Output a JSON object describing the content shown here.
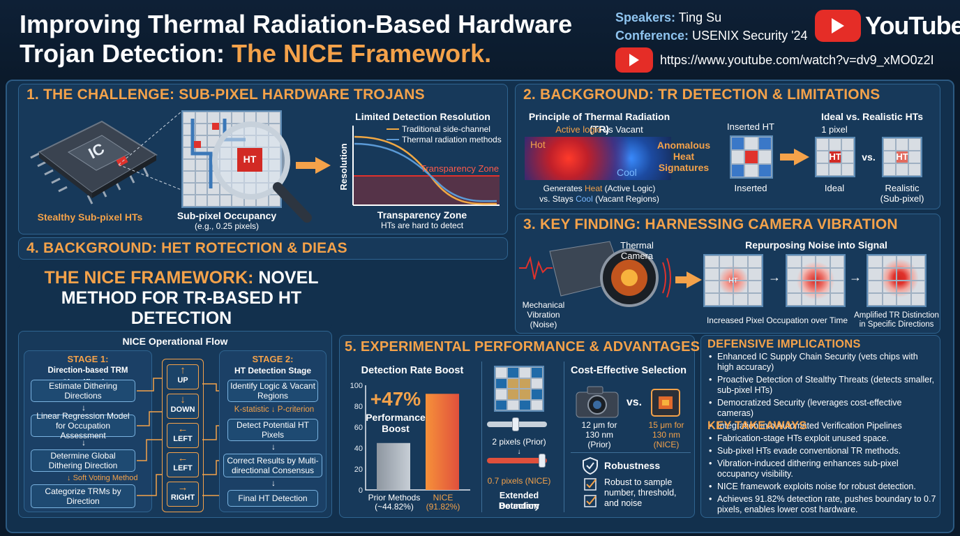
{
  "header": {
    "title_line1": "Improving Thermal Radiation-Based Hardware",
    "title_line2_a": "Trojan Detection: ",
    "title_line2_b": "The NICE Framework.",
    "speakers_label": "Speakers:",
    "speakers_value": "Ting Su",
    "conference_label": "Conference:",
    "conference_value": "USENIX Security '24",
    "youtube_word": "YouTube",
    "url": "https://www.youtube.com/watch?v=dv9_xMO0z2I"
  },
  "s1": {
    "title": "1.  THE CHALLENGE: SUB-PIXEL HARDWARE TROJANS",
    "chip_label": "IC",
    "chip_caption": "Stealthy Sub-pixel HTs",
    "ht_label": "HT",
    "occ_caption1": "Sub-pixel Occupancy",
    "occ_caption2": "(e.g., 0.25 pixels)",
    "chart_title": "Limited Detection Resolution",
    "legend1": "Traditional side-channel",
    "legend2": "Thermal radiation methods",
    "ylabel": "Resolution",
    "zone_label": "Transparency Zone",
    "xcap1": "Transparency Zone",
    "xcap2": "HTs are hard to detect"
  },
  "s2": {
    "title": "2.  BACKGROUND: TR DETECTION & LIMITATIONS",
    "principle": "Principle of Thermal Radiation (TR)",
    "active_a": "Active logic",
    "active_vs": " vs ",
    "active_b": "Vacant",
    "hot": "Hot",
    "cool": "Cool",
    "gen1a": "Generates ",
    "gen1b": "Heat",
    "gen1c": " (Active Logic)",
    "gen2a": "vs. Stays ",
    "gen2b": "Cool",
    "gen2c": " (Vacant Regions)",
    "anomalous": "Anomalous Heat Signatures",
    "inserted_top": "Inserted HT",
    "inserted_bottom": "Inserted",
    "ideal_title": "Ideal vs. Realistic HTs",
    "one_pixel": "1 pixel",
    "ht": "HT",
    "vs": "vs.",
    "ideal": "Ideal",
    "realistic1": "Realistic",
    "realistic2": "(Sub-pixel)"
  },
  "s3": {
    "title": "3.  KEY FINDING: HARNESSING CAMERA VIBRATION",
    "camera_label1": "Thermal",
    "camera_label2": "Camera",
    "mech1": "Mechanical",
    "mech2": "Vibration",
    "mech3": "(Noise)",
    "repurpose": "Repurposing Noise into Signal",
    "ht": "HT",
    "caption1": "Increased Pixel Occupation over Time",
    "caption2a": "Amplified TR Distinction",
    "caption2b": "in Specific Directions"
  },
  "s4": {
    "title": "4.  BACKGROUND: HET ROTECTION & DIEAS",
    "big_a": "THE NICE FRAMEWORK:",
    "big_b": " NOVEL METHOD FOR TR-BASED HT DETECTION",
    "flow_title": "NICE Operational Flow",
    "stage1_title": "STAGE 1:",
    "stage1_sub": "Direction-based TRM Classification",
    "s1_boxes": [
      "Estimate Dithering Directions",
      "Linear Regression Model for Occupation Assessment",
      "Determine Global Dithering Direction",
      "Categorize TRMs by Direction"
    ],
    "soft_voting": "Soft Voting Method",
    "dirs": [
      "UP",
      "DOWN",
      "LEFT",
      "LEFT",
      "RIGHT"
    ],
    "stage2_title": "STAGE 2:",
    "stage2_sub": "HT Detection Stage",
    "s2_boxes": [
      "Identify Logic & Vacant Regions",
      "Detect Potential HT Pixels",
      "Correct Results by Multi-directional Consensus",
      "Final HT Detection"
    ],
    "k_stat": "K-statistic",
    "p_crit": "P-criterion"
  },
  "s5": {
    "title": "5. EXPERIMENTAL PERFORMANCE & ADVANTAGES",
    "rate_title": "Detection Rate Boost",
    "boost": "+47%",
    "boost_sub1": "Performance",
    "boost_sub2": "Boost",
    "yticks": [
      "100",
      "80",
      "60",
      "40",
      "20",
      "0"
    ],
    "bar1_label1": "Prior Methods",
    "bar1_label2": "(~44.82%)",
    "bar2_label1": "NICE",
    "bar2_label2": "(91.82%)",
    "prior_px": "2 pixels (Prior)",
    "nice_px": "0.7 pixels (NICE)",
    "boundary1": "Extended Detection",
    "boundary2": "Boundary",
    "cost_title": "Cost-Effective Selection",
    "vs": "vs.",
    "cam1a": "12 μm for",
    "cam1b": "130 nm",
    "cam1c": "(Prior)",
    "cam2a": "15 μm for",
    "cam2b": "130 nm",
    "cam2c": "(NICE)",
    "robust_title": "Robustness",
    "robust_text": "Robust to sample number, threshold, and noise"
  },
  "chart_data": {
    "type": "bar",
    "title": "Detection Rate Boost",
    "categories": [
      "Prior Methods",
      "NICE"
    ],
    "values": [
      44.82,
      91.82
    ],
    "ylim": [
      0,
      100
    ]
  },
  "s6": {
    "def_title": "DEFENSIVE IMPLICATIONS",
    "def_items": [
      "Enhanced IC Supply Chain Security (vets chips with high accuracy)",
      "Proactive Detection of Stealthy Threats (detects smaller, sub-pixel HTs)",
      "Democratized Security (leverages cost-effective cameras)",
      "Integration into Automated Verification Pipelines"
    ],
    "key_title": "KEY TAKEAWAYS",
    "key_items": [
      "Fabrication-stage HTs exploit unused space.",
      "Sub-pixel HTs evade conventional TR methods.",
      "Vibration-induced dithering enhances sub-pixel occupancy visibility.",
      "NICE framework exploits noise for robust detection.",
      "Achieves 91.82% detection rate, pushes boundary to 0.7 pixels, enables lower cost hardware."
    ]
  }
}
